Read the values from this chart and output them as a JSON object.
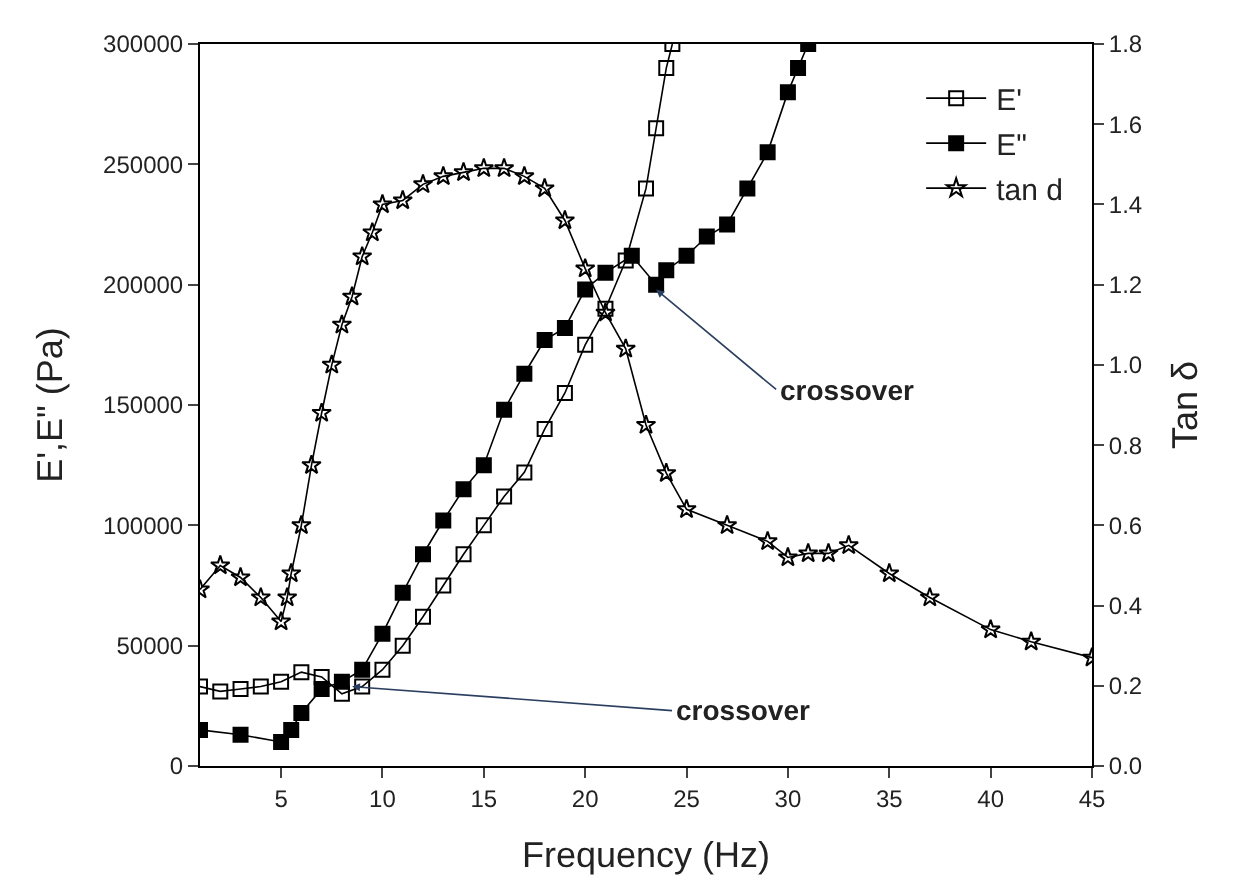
{
  "chart_data": {
    "type": "line",
    "xlabel": "Frequency (Hz)",
    "ylabel": "E',E\" (Pa)",
    "y2label": "Tan δ",
    "xlim": [
      1,
      45
    ],
    "xticks": [
      5,
      10,
      15,
      20,
      25,
      30,
      35,
      40,
      45
    ],
    "ylim": [
      0,
      300000
    ],
    "yticks": [
      0,
      50000,
      100000,
      150000,
      200000,
      250000,
      300000
    ],
    "y2lim": [
      0,
      1.8
    ],
    "y2ticks": [
      {
        "value": 0,
        "label": "0.0"
      },
      0.2,
      0.4,
      0.6,
      0.8,
      {
        "value": 1,
        "label": "1.0"
      },
      1.2,
      1.4,
      1.6,
      1.8
    ],
    "legend": "top right",
    "line_style": "solid",
    "series": [
      {
        "name": "E'",
        "color": "#000000",
        "marker": "square-open",
        "x": [
          1,
          2,
          3,
          4,
          5,
          6,
          7,
          8,
          9,
          10,
          11,
          12,
          13,
          14,
          15,
          16,
          17,
          18,
          19,
          20,
          21,
          22,
          23,
          23.5,
          24,
          24.3
        ],
        "values": [
          33000,
          31000,
          32000,
          33000,
          35000,
          39000,
          37000,
          30000,
          33000,
          40000,
          50000,
          62000,
          75000,
          88000,
          100000,
          112000,
          122000,
          140000,
          155000,
          175000,
          190000,
          210000,
          240000,
          265000,
          290000,
          300000
        ]
      },
      {
        "name": "E\"",
        "color": "#000000",
        "marker": "square",
        "x": [
          1,
          3,
          5,
          5.5,
          6,
          7,
          8,
          9,
          10,
          11,
          12,
          13,
          14,
          15,
          16,
          17,
          18,
          19,
          20,
          21,
          22.3,
          23.5,
          24,
          25,
          26,
          27,
          28,
          29,
          30,
          30.5,
          31
        ],
        "values": [
          15000,
          13000,
          10000,
          15000,
          22000,
          32000,
          35000,
          40000,
          55000,
          72000,
          88000,
          102000,
          115000,
          125000,
          148000,
          163000,
          177000,
          182000,
          198000,
          205000,
          212000,
          200000,
          206000,
          212000,
          220000,
          225000,
          240000,
          255000,
          280000,
          290000,
          300000
        ]
      },
      {
        "name": "tan d",
        "color": "#000000",
        "marker": "star-open",
        "axis": "y2",
        "x": [
          1,
          2,
          3,
          4,
          5,
          5.3,
          5.5,
          6,
          6.5,
          7,
          7.5,
          8,
          8.5,
          9,
          9.5,
          10,
          11,
          12,
          13,
          14,
          15,
          16,
          17,
          18,
          19,
          20,
          21,
          22,
          23,
          24,
          25,
          27,
          29,
          30,
          31,
          32,
          33,
          35,
          37,
          40,
          42,
          45
        ],
        "values": [
          0.44,
          0.5,
          0.47,
          0.42,
          0.36,
          0.42,
          0.48,
          0.6,
          0.75,
          0.88,
          1.0,
          1.1,
          1.17,
          1.27,
          1.33,
          1.4,
          1.41,
          1.45,
          1.47,
          1.48,
          1.49,
          1.49,
          1.47,
          1.44,
          1.36,
          1.24,
          1.13,
          1.04,
          0.85,
          0.73,
          0.64,
          0.6,
          0.56,
          0.52,
          0.53,
          0.53,
          0.55,
          0.48,
          0.42,
          0.34,
          0.31,
          0.27
        ]
      }
    ],
    "annotations": [
      {
        "text": "crossover",
        "x": 8.5,
        "y": 33000
      },
      {
        "text": "crossover",
        "x": 23.5,
        "y": 198000
      }
    ]
  }
}
